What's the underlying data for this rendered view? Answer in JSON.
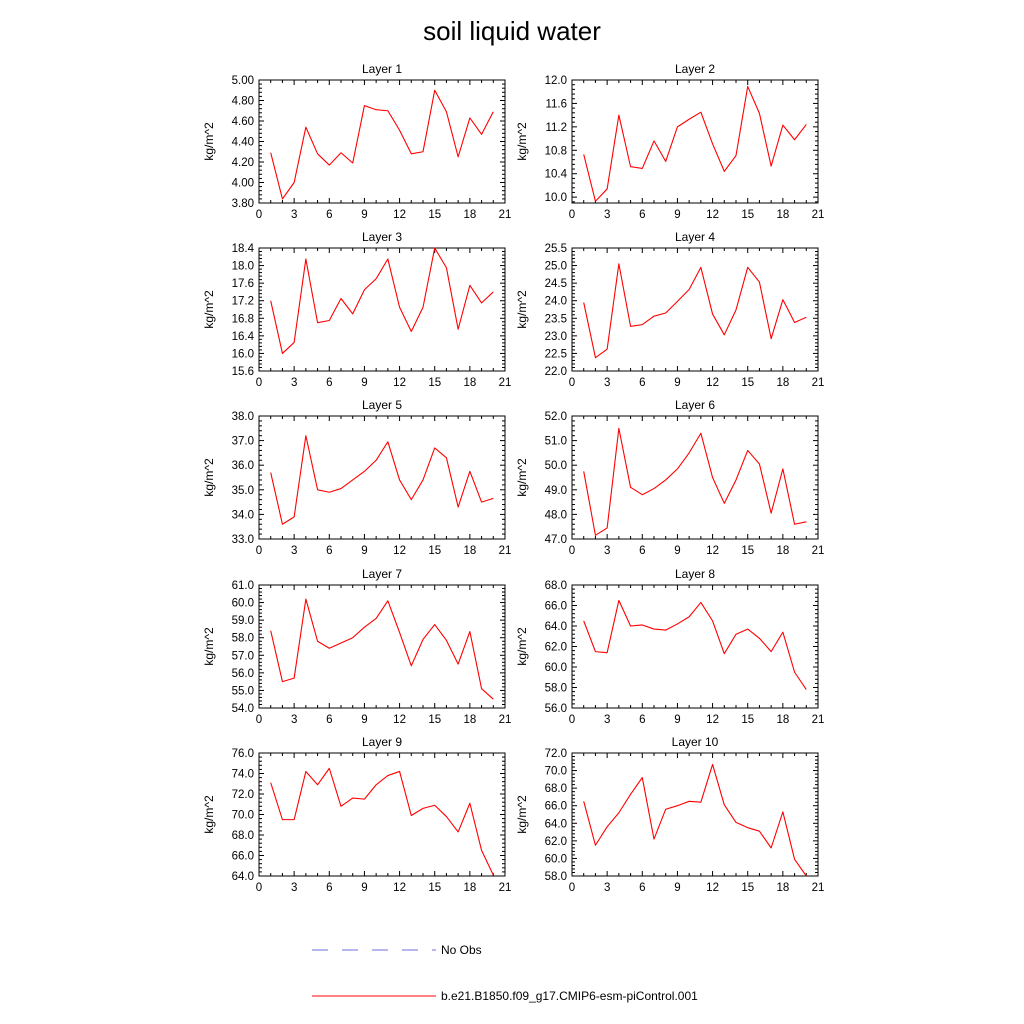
{
  "figure": {
    "title": "soil liquid water"
  },
  "colors": {
    "series": "#ff0000",
    "obs": "#6f6fdf",
    "axis": "#000000"
  },
  "legend": {
    "entries": [
      {
        "label": "No Obs",
        "style": "dashed",
        "color": "#6f6fdf"
      },
      {
        "label": "b.e21.B1850.f09_g17.CMIP6-esm-piControl.001",
        "style": "solid",
        "color": "#ff0000"
      }
    ]
  },
  "chart_data": [
    {
      "type": "line",
      "title": "Layer 1",
      "ylabel": "kg/m^2",
      "xlim": [
        0,
        21
      ],
      "xticks": [
        0,
        3,
        6,
        9,
        12,
        15,
        18,
        21
      ],
      "ylim": [
        3.8,
        5.0
      ],
      "yticks": [
        "3.80",
        "4.00",
        "4.20",
        "4.40",
        "4.60",
        "4.80",
        "5.00"
      ],
      "x": [
        1,
        2,
        3,
        4,
        5,
        6,
        7,
        8,
        9,
        10,
        11,
        12,
        13,
        14,
        15,
        16,
        17,
        18,
        19,
        20
      ],
      "series": [
        {
          "values": [
            4.29,
            3.84,
            4.0,
            4.54,
            4.28,
            4.17,
            4.29,
            4.19,
            4.75,
            4.71,
            4.7,
            4.51,
            4.28,
            4.3,
            4.9,
            4.69,
            4.25,
            4.63,
            4.47,
            4.69
          ]
        }
      ]
    },
    {
      "type": "line",
      "title": "Layer 2",
      "ylabel": "kg/m^2",
      "xlim": [
        0,
        21
      ],
      "xticks": [
        0,
        3,
        6,
        9,
        12,
        15,
        18,
        21
      ],
      "ylim": [
        9.9,
        12.0
      ],
      "yticks": [
        "10.0",
        "10.4",
        "10.8",
        "11.2",
        "11.6",
        "12.0"
      ],
      "x": [
        1,
        2,
        3,
        4,
        5,
        6,
        7,
        8,
        9,
        10,
        11,
        12,
        13,
        14,
        15,
        16,
        17,
        18,
        19,
        20
      ],
      "series": [
        {
          "values": [
            10.73,
            9.93,
            10.14,
            11.4,
            10.52,
            10.49,
            10.96,
            10.61,
            11.2,
            11.33,
            11.45,
            10.91,
            10.44,
            10.71,
            11.89,
            11.43,
            10.53,
            11.23,
            10.98,
            11.24
          ]
        }
      ]
    },
    {
      "type": "line",
      "title": "Layer 3",
      "ylabel": "kg/m^2",
      "xlim": [
        0,
        21
      ],
      "xticks": [
        0,
        3,
        6,
        9,
        12,
        15,
        18,
        21
      ],
      "ylim": [
        15.6,
        18.4
      ],
      "yticks": [
        "15.6",
        "16.0",
        "16.4",
        "16.8",
        "17.2",
        "17.6",
        "18.0",
        "18.4"
      ],
      "x": [
        1,
        2,
        3,
        4,
        5,
        6,
        7,
        8,
        9,
        10,
        11,
        12,
        13,
        14,
        15,
        16,
        17,
        18,
        19,
        20
      ],
      "series": [
        {
          "values": [
            17.2,
            16.0,
            16.25,
            18.15,
            16.7,
            16.75,
            17.25,
            16.9,
            17.45,
            17.7,
            18.15,
            17.05,
            16.5,
            17.05,
            18.4,
            17.95,
            16.55,
            17.55,
            17.15,
            17.4
          ]
        }
      ]
    },
    {
      "type": "line",
      "title": "Layer 4",
      "ylabel": "kg/m^2",
      "xlim": [
        0,
        21
      ],
      "xticks": [
        0,
        3,
        6,
        9,
        12,
        15,
        18,
        21
      ],
      "ylim": [
        22.0,
        25.5
      ],
      "yticks": [
        "22.0",
        "22.5",
        "23.0",
        "23.5",
        "24.0",
        "24.5",
        "25.0",
        "25.5"
      ],
      "x": [
        1,
        2,
        3,
        4,
        5,
        6,
        7,
        8,
        9,
        10,
        11,
        12,
        13,
        14,
        15,
        16,
        17,
        18,
        19,
        20
      ],
      "series": [
        {
          "values": [
            23.95,
            22.38,
            22.62,
            25.05,
            23.27,
            23.32,
            23.56,
            23.65,
            23.98,
            24.32,
            24.95,
            23.62,
            23.03,
            23.74,
            24.95,
            24.53,
            22.92,
            24.03,
            23.38,
            23.53
          ]
        }
      ]
    },
    {
      "type": "line",
      "title": "Layer 5",
      "ylabel": "kg/m^2",
      "xlim": [
        0,
        21
      ],
      "xticks": [
        0,
        3,
        6,
        9,
        12,
        15,
        18,
        21
      ],
      "ylim": [
        33.0,
        38.0
      ],
      "yticks": [
        "33.0",
        "34.0",
        "35.0",
        "36.0",
        "37.0",
        "38.0"
      ],
      "x": [
        1,
        2,
        3,
        4,
        5,
        6,
        7,
        8,
        9,
        10,
        11,
        12,
        13,
        14,
        15,
        16,
        17,
        18,
        19,
        20
      ],
      "series": [
        {
          "values": [
            35.7,
            33.6,
            33.9,
            37.2,
            35.0,
            34.9,
            35.05,
            35.4,
            35.75,
            36.2,
            36.95,
            35.4,
            34.6,
            35.4,
            36.7,
            36.3,
            34.3,
            35.75,
            34.5,
            34.65
          ]
        }
      ]
    },
    {
      "type": "line",
      "title": "Layer 6",
      "ylabel": "kg/m^2",
      "xlim": [
        0,
        21
      ],
      "xticks": [
        0,
        3,
        6,
        9,
        12,
        15,
        18,
        21
      ],
      "ylim": [
        47.0,
        52.0
      ],
      "yticks": [
        "47.0",
        "48.0",
        "49.0",
        "50.0",
        "51.0",
        "52.0"
      ],
      "x": [
        1,
        2,
        3,
        4,
        5,
        6,
        7,
        8,
        9,
        10,
        11,
        12,
        13,
        14,
        15,
        16,
        17,
        18,
        19,
        20
      ],
      "series": [
        {
          "values": [
            49.75,
            47.15,
            47.45,
            51.5,
            49.1,
            48.8,
            49.05,
            49.4,
            49.85,
            50.5,
            51.3,
            49.5,
            48.45,
            49.4,
            50.6,
            50.05,
            48.05,
            49.85,
            47.6,
            47.7
          ]
        }
      ]
    },
    {
      "type": "line",
      "title": "Layer 7",
      "ylabel": "kg/m^2",
      "xlim": [
        0,
        21
      ],
      "xticks": [
        0,
        3,
        6,
        9,
        12,
        15,
        18,
        21
      ],
      "ylim": [
        54.0,
        61.0
      ],
      "yticks": [
        "54.0",
        "55.0",
        "56.0",
        "57.0",
        "58.0",
        "59.0",
        "60.0",
        "61.0"
      ],
      "x": [
        1,
        2,
        3,
        4,
        5,
        6,
        7,
        8,
        9,
        10,
        11,
        12,
        13,
        14,
        15,
        16,
        17,
        18,
        19,
        20
      ],
      "series": [
        {
          "values": [
            58.4,
            55.5,
            55.7,
            60.2,
            57.8,
            57.4,
            57.7,
            58.0,
            58.6,
            59.1,
            60.1,
            58.3,
            56.4,
            57.9,
            58.75,
            57.85,
            56.5,
            58.35,
            55.1,
            54.5
          ]
        }
      ]
    },
    {
      "type": "line",
      "title": "Layer 8",
      "ylabel": "kg/m^2",
      "xlim": [
        0,
        21
      ],
      "xticks": [
        0,
        3,
        6,
        9,
        12,
        15,
        18,
        21
      ],
      "ylim": [
        56.0,
        68.0
      ],
      "yticks": [
        "56.0",
        "58.0",
        "60.0",
        "62.0",
        "64.0",
        "66.0",
        "68.0"
      ],
      "x": [
        1,
        2,
        3,
        4,
        5,
        6,
        7,
        8,
        9,
        10,
        11,
        12,
        13,
        14,
        15,
        16,
        17,
        18,
        19,
        20
      ],
      "series": [
        {
          "values": [
            64.5,
            61.5,
            61.4,
            66.5,
            64.0,
            64.1,
            63.7,
            63.6,
            64.2,
            64.9,
            66.3,
            64.5,
            61.3,
            63.2,
            63.7,
            62.8,
            61.5,
            63.4,
            59.5,
            57.8
          ]
        }
      ]
    },
    {
      "type": "line",
      "title": "Layer 9",
      "ylabel": "kg/m^2",
      "xlim": [
        0,
        21
      ],
      "xticks": [
        0,
        3,
        6,
        9,
        12,
        15,
        18,
        21
      ],
      "ylim": [
        64.0,
        76.0
      ],
      "yticks": [
        "64.0",
        "66.0",
        "68.0",
        "70.0",
        "72.0",
        "74.0",
        "76.0"
      ],
      "x": [
        1,
        2,
        3,
        4,
        5,
        6,
        7,
        8,
        9,
        10,
        11,
        12,
        13,
        14,
        15,
        16,
        17,
        18,
        19,
        20
      ],
      "series": [
        {
          "values": [
            73.1,
            69.5,
            69.5,
            74.2,
            72.9,
            74.5,
            70.8,
            71.6,
            71.5,
            72.9,
            73.8,
            74.2,
            69.9,
            70.6,
            70.9,
            69.8,
            68.3,
            71.1,
            66.5,
            64.1
          ]
        }
      ]
    },
    {
      "type": "line",
      "title": "Layer 10",
      "ylabel": "kg/m^2",
      "xlim": [
        0,
        21
      ],
      "xticks": [
        0,
        3,
        6,
        9,
        12,
        15,
        18,
        21
      ],
      "ylim": [
        58.0,
        72.0
      ],
      "yticks": [
        "58.0",
        "60.0",
        "62.0",
        "64.0",
        "66.0",
        "68.0",
        "70.0",
        "72.0"
      ],
      "x": [
        1,
        2,
        3,
        4,
        5,
        6,
        7,
        8,
        9,
        10,
        11,
        12,
        13,
        14,
        15,
        16,
        17,
        18,
        19,
        20
      ],
      "series": [
        {
          "values": [
            66.5,
            61.5,
            63.6,
            65.2,
            67.3,
            69.2,
            62.2,
            65.6,
            66.0,
            66.5,
            66.4,
            70.7,
            66.1,
            64.1,
            63.5,
            63.1,
            61.2,
            65.3,
            59.9,
            58.0
          ]
        }
      ]
    }
  ]
}
